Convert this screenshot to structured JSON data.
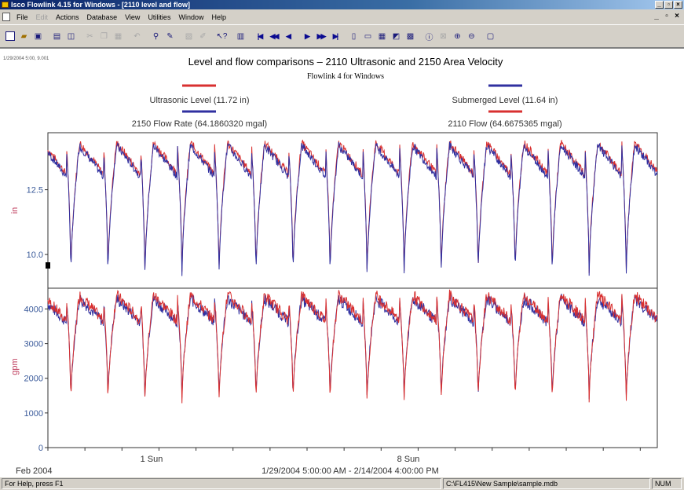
{
  "window": {
    "title": "Isco Flowlink 4.15 for Windows - [2110 level and flow]",
    "minimize_label": "_",
    "maximize_label": "▫",
    "close_label": "×"
  },
  "menu": {
    "items": [
      {
        "label": "File",
        "disabled": false
      },
      {
        "label": "Edit",
        "disabled": true
      },
      {
        "label": "Actions",
        "disabled": false
      },
      {
        "label": "Database",
        "disabled": false
      },
      {
        "label": "View",
        "disabled": false
      },
      {
        "label": "Utilities",
        "disabled": false
      },
      {
        "label": "Window",
        "disabled": false
      },
      {
        "label": "Help",
        "disabled": false
      }
    ],
    "mdi_controls": [
      "_",
      "▫",
      "×"
    ]
  },
  "chart": {
    "timestamp_readout": "1/29/2004 5:00, 9.001",
    "title": "Level and flow comparisons – 2110 Ultrasonic and 2150 Area Velocity",
    "subtitle": "Flowlink 4 for Windows",
    "legend": {
      "ultrasonic_level": "Ultrasonic Level (11.72 in)",
      "submerged_level": "Submerged Level (11.64 in)",
      "flow_rate_2150": "2150 Flow Rate (64.1860320 mgal)",
      "flow_2110": "2110 Flow (64.6675365 mgal)"
    },
    "x_axis": {
      "month_label": "Feb 2004",
      "range_label": "1/29/2004 5:00:00 AM - 2/14/2004 4:00:00 PM",
      "tick_labels": [
        "1 Sun",
        "8 Sun"
      ]
    },
    "colors": {
      "red": "#d83030",
      "blue": "#3030a0",
      "axis_label": "#c04060",
      "tick_label": "#3a5a9a"
    }
  },
  "chart_data": [
    {
      "type": "line",
      "ylabel": "in",
      "ylim": [
        8.7,
        14.7
      ],
      "y_ticks": [
        "10.0",
        "12.5"
      ],
      "y_tick_values": [
        10.0,
        12.5
      ],
      "x_range_days": [
        0,
        16.46
      ],
      "cycle_period_days": 1,
      "series": [
        {
          "name": "Ultrasonic Level (11.72 in)",
          "color": "#d83030",
          "mean": 11.72,
          "peak": 14.3,
          "trough": 9.1
        },
        {
          "name": "Submerged Level (11.64 in)",
          "color": "#3030a0",
          "mean": 11.64,
          "peak": 14.2,
          "trough": 9.0
        }
      ]
    },
    {
      "type": "line",
      "ylabel": "gpm",
      "ylim": [
        0,
        4600
      ],
      "y_ticks": [
        "0",
        "1000",
        "2000",
        "3000",
        "4000"
      ],
      "y_tick_values": [
        0,
        1000,
        2000,
        3000,
        4000
      ],
      "x_range_days": [
        0,
        16.46
      ],
      "cycle_period_days": 1,
      "series": [
        {
          "name": "2150 Flow Rate (64.1860320 mgal)",
          "color": "#3030a0",
          "peak": 4300,
          "trough": 1300
        },
        {
          "name": "2110 Flow (64.6675365 mgal)",
          "color": "#d83030",
          "peak": 4400,
          "trough": 1200
        }
      ]
    }
  ],
  "statusbar": {
    "help_text": "For Help, press F1",
    "db_path": "C:\\FL415\\New Sample\\sample.mdb",
    "num_indicator": "NUM"
  }
}
